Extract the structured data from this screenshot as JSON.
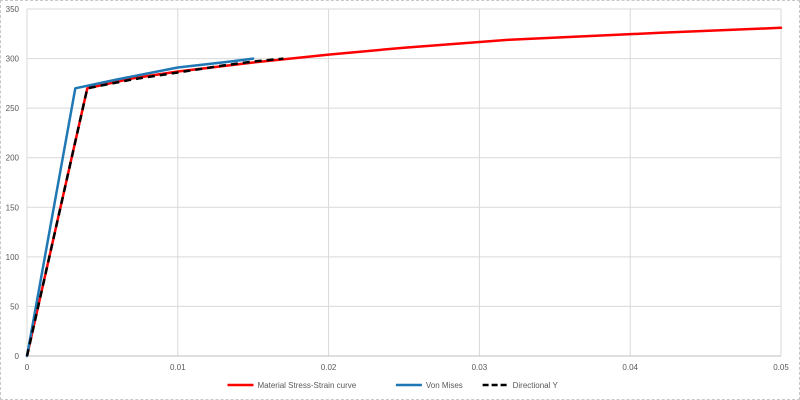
{
  "chart_data": {
    "type": "line",
    "title": "",
    "xlabel": "",
    "ylabel": "",
    "xlim": [
      0,
      0.05
    ],
    "ylim": [
      0,
      350
    ],
    "x_ticks": [
      "0",
      "0.01",
      "0.02",
      "0.03",
      "0.04",
      "0.05"
    ],
    "y_ticks": [
      "0",
      "50",
      "100",
      "150",
      "200",
      "250",
      "300",
      "350"
    ],
    "grid": true,
    "legend_position": "bottom",
    "series": [
      {
        "name": "Material Stress-Strain curve",
        "color": "#ff0000",
        "style": "solid",
        "points": [
          [
            0,
            0
          ],
          [
            0.004,
            270
          ],
          [
            0.007,
            280
          ],
          [
            0.01,
            287
          ],
          [
            0.015,
            296
          ],
          [
            0.02,
            304
          ],
          [
            0.025,
            311
          ],
          [
            0.032,
            319
          ],
          [
            0.042,
            326
          ],
          [
            0.05,
            331
          ]
        ]
      },
      {
        "name": "Von Mises",
        "color": "#1f77b4",
        "style": "solid",
        "points": [
          [
            0,
            0
          ],
          [
            0.0032,
            270
          ],
          [
            0.006,
            279
          ],
          [
            0.01,
            291
          ],
          [
            0.0135,
            297
          ],
          [
            0.015,
            300
          ]
        ]
      },
      {
        "name": "Directional Y",
        "color": "#000000",
        "style": "dashed",
        "points": [
          [
            0,
            0
          ],
          [
            0.004,
            270
          ],
          [
            0.007,
            279
          ],
          [
            0.01,
            286
          ],
          [
            0.013,
            293
          ],
          [
            0.015,
            297
          ],
          [
            0.017,
            300
          ]
        ]
      }
    ]
  }
}
